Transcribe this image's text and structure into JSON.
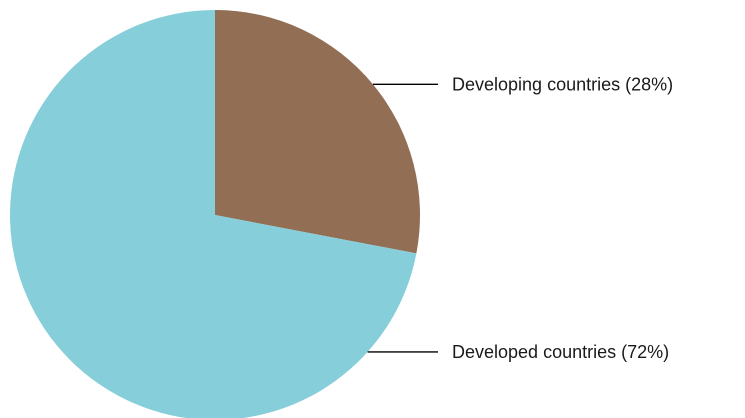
{
  "chart_data": {
    "type": "pie",
    "start_angle_deg": 0,
    "direction": "clockwise",
    "slices": [
      {
        "label": "Developing countries (28%)",
        "value": 28,
        "color": "#926e54"
      },
      {
        "label": "Developed countries (72%)",
        "value": 72,
        "color": "#86ceda"
      }
    ],
    "legend": "none"
  }
}
